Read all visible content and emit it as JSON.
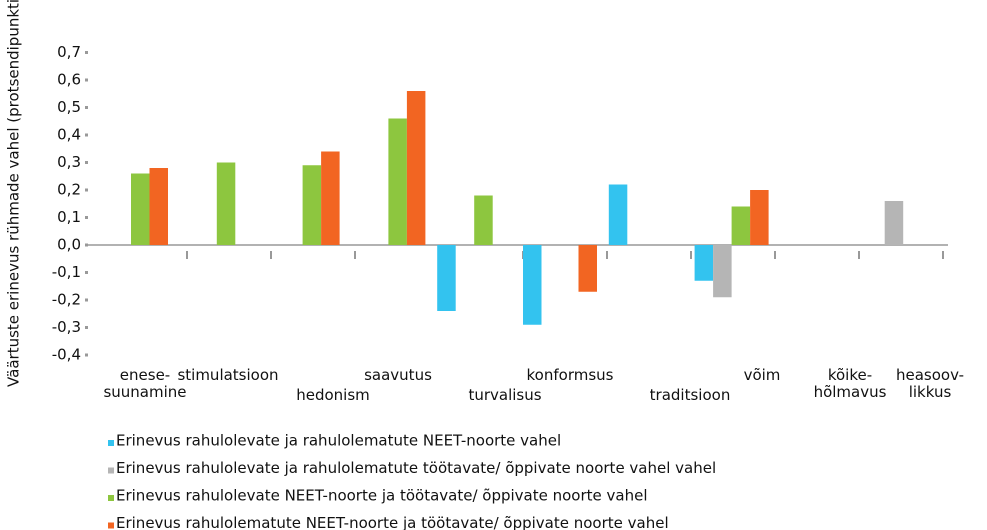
{
  "chart_data": {
    "type": "bar",
    "y_label": "Väärtuste erinevus rühmade vahel (protsendipunkti)",
    "categories": [
      "enese-\nsuunamine",
      "stimulatsioon",
      "hedonism",
      "saavutus",
      "turvalisus",
      "konformsus",
      "traditsioon",
      "võim",
      "kõike-\nhõlmavus",
      "heasoov-\nlikkus"
    ],
    "series": [
      {
        "name": "Erinevus rahulolevate ja rahulolematute NEET-noorte vahel",
        "color": "#33c3ef",
        "values": [
          null,
          null,
          null,
          null,
          -0.24,
          -0.29,
          0.22,
          -0.13,
          null,
          null
        ]
      },
      {
        "name": "Erinevus rahulolevate ja rahulolematute töötavate/ õppivate noorte vahel vahel",
        "color": "#b5b5b5",
        "values": [
          null,
          null,
          null,
          null,
          null,
          null,
          null,
          -0.19,
          null,
          0.16
        ]
      },
      {
        "name": "Erinevus rahulolevate NEET-noorte ja töötavate/ õppivate noorte vahel",
        "color": "#8dc63f",
        "values": [
          0.26,
          0.3,
          0.29,
          0.46,
          0.18,
          null,
          null,
          0.14,
          null,
          null
        ]
      },
      {
        "name": "Erinevus rahulolematute NEET-noorte ja töötavate/ õppivate noorte vahel",
        "color": "#f26522",
        "values": [
          0.28,
          null,
          0.34,
          0.56,
          null,
          -0.17,
          null,
          0.2,
          null,
          null
        ]
      }
    ],
    "ylim": [
      -0.4,
      0.7
    ],
    "yticks": [
      {
        "value": 0.7,
        "label": "0,7"
      },
      {
        "value": 0.6,
        "label": "0,6"
      },
      {
        "value": 0.5,
        "label": "0,5"
      },
      {
        "value": 0.4,
        "label": "0,4"
      },
      {
        "value": 0.3,
        "label": "0,3"
      },
      {
        "value": 0.2,
        "label": "0,2"
      },
      {
        "value": 0.1,
        "label": "0,1"
      },
      {
        "value": 0,
        "label": "0,0"
      },
      {
        "value": -0.1,
        "label": "-0,1"
      },
      {
        "value": -0.2,
        "label": "-0,2"
      },
      {
        "value": -0.3,
        "label": "-0,3"
      },
      {
        "value": -0.4,
        "label": "-0,4"
      }
    ],
    "legend": "bottom"
  }
}
